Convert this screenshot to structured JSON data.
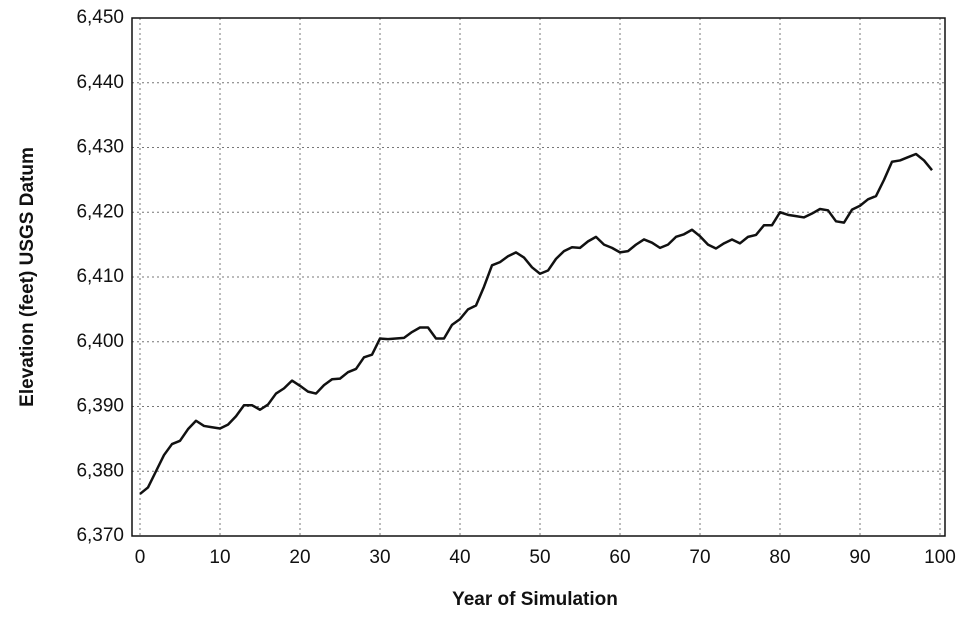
{
  "chart_data": {
    "type": "line",
    "x_label": "Year of Simulation",
    "y_label": "Elevation (feet) USGS Datum",
    "x": [
      0,
      1,
      2,
      3,
      4,
      5,
      6,
      7,
      8,
      9,
      10,
      11,
      12,
      13,
      14,
      15,
      16,
      17,
      18,
      19,
      20,
      21,
      22,
      23,
      24,
      25,
      26,
      27,
      28,
      29,
      30,
      31,
      32,
      33,
      34,
      35,
      36,
      37,
      38,
      39,
      40,
      41,
      42,
      43,
      44,
      45,
      46,
      47,
      48,
      49,
      50,
      51,
      52,
      53,
      54,
      55,
      56,
      57,
      58,
      59,
      60,
      61,
      62,
      63,
      64,
      65,
      66,
      67,
      68,
      69,
      70,
      71,
      72,
      73,
      74,
      75,
      76,
      77,
      78,
      79,
      80,
      81,
      82,
      83,
      84,
      85,
      86,
      87,
      88,
      89,
      90,
      91,
      92,
      93,
      94,
      95,
      96,
      97,
      98,
      99
    ],
    "series": [
      {
        "color": "#111111",
        "values": [
          6376.5,
          6377.5,
          6380,
          6382.5,
          6384.2,
          6384.7,
          6386.5,
          6387.8,
          6387,
          6386.8,
          6386.6,
          6387.2,
          6388.5,
          6390.2,
          6390.2,
          6389.5,
          6390.3,
          6392,
          6392.8,
          6394,
          6393.2,
          6392.3,
          6392,
          6393.3,
          6394.2,
          6394.3,
          6395.3,
          6395.8,
          6397.6,
          6398,
          6400.5,
          6400.4,
          6400.5,
          6400.6,
          6401.5,
          6402.2,
          6402.2,
          6400.5,
          6400.5,
          6402.6,
          6403.5,
          6405,
          6405.6,
          6408.5,
          6411.8,
          6412.3,
          6413.2,
          6413.8,
          6413,
          6411.5,
          6410.5,
          6411,
          6412.8,
          6414,
          6414.6,
          6414.5,
          6415.5,
          6416.2,
          6415,
          6414.5,
          6413.8,
          6414,
          6415,
          6415.8,
          6415.3,
          6414.5,
          6415,
          6416.2,
          6416.6,
          6417.3,
          6416.3,
          6415,
          6414.4,
          6415.2,
          6415.8,
          6415.2,
          6416.2,
          6416.5,
          6418,
          6418,
          6420,
          6419.6,
          6419.4,
          6419.2,
          6419.8,
          6420.5,
          6420.3,
          6418.6,
          6418.4,
          6420.4,
          6421,
          6422,
          6422.5,
          6425,
          6427.8,
          6428,
          6428.5,
          6429,
          6428,
          6426.5
        ]
      }
    ],
    "xlim": [
      0,
      100
    ],
    "xticks": [
      0,
      10,
      20,
      30,
      40,
      50,
      60,
      70,
      80,
      90,
      100
    ],
    "ylim": [
      6370,
      6450
    ],
    "yticks": [
      {
        "value": 6370,
        "label": "6,370"
      },
      {
        "value": 6380,
        "label": "6,380"
      },
      {
        "value": 6390,
        "label": "6,390"
      },
      {
        "value": 6400,
        "label": "6,400"
      },
      {
        "value": 6410,
        "label": "6,410"
      },
      {
        "value": 6420,
        "label": "6,420"
      },
      {
        "value": 6430,
        "label": "6,430"
      },
      {
        "value": 6440,
        "label": "6,440"
      },
      {
        "value": 6450,
        "label": "6,450"
      }
    ],
    "grid": true
  }
}
